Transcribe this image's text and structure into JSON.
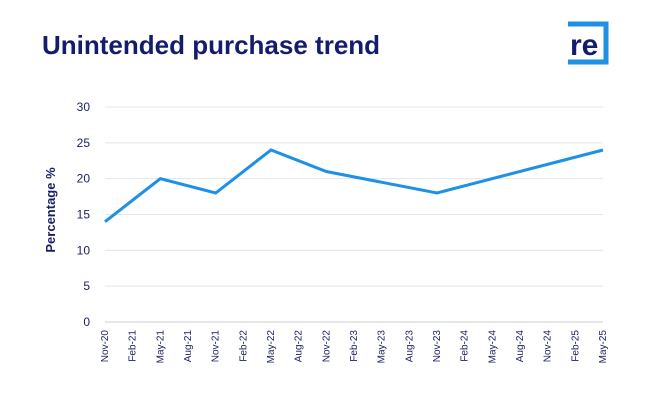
{
  "chart_data": {
    "type": "line",
    "title": "Unintended purchase trend",
    "ylabel": "Percentage %",
    "xlabel": "",
    "ylim": [
      0,
      30
    ],
    "yticks": [
      0,
      5,
      10,
      15,
      20,
      25,
      30
    ],
    "grid": true,
    "legend": "none",
    "categories": [
      "Nov-20",
      "Feb-21",
      "May-21",
      "Aug-21",
      "Nov-21",
      "Feb-22",
      "May-22",
      "Aug-22",
      "Nov-22",
      "Feb-23",
      "May-23",
      "Aug-23",
      "Nov-23",
      "Feb-24",
      "May-24",
      "Aug-24",
      "Nov-24",
      "Feb-25",
      "May-25"
    ],
    "series": [
      {
        "color": "#1e90e6",
        "points": [
          {
            "x": "Nov-20",
            "y": 14
          },
          {
            "x": "May-21",
            "y": 20
          },
          {
            "x": "Nov-21",
            "y": 18
          },
          {
            "x": "May-22",
            "y": 24
          },
          {
            "x": "Nov-22",
            "y": 21
          },
          {
            "x": "Nov-23",
            "y": 18
          },
          {
            "x": "May-25",
            "y": 24
          }
        ]
      }
    ]
  },
  "logo": {
    "text": "re",
    "color": "#1e90e6",
    "text_color": "#141c6e",
    "icon": "re-logo-icon"
  }
}
